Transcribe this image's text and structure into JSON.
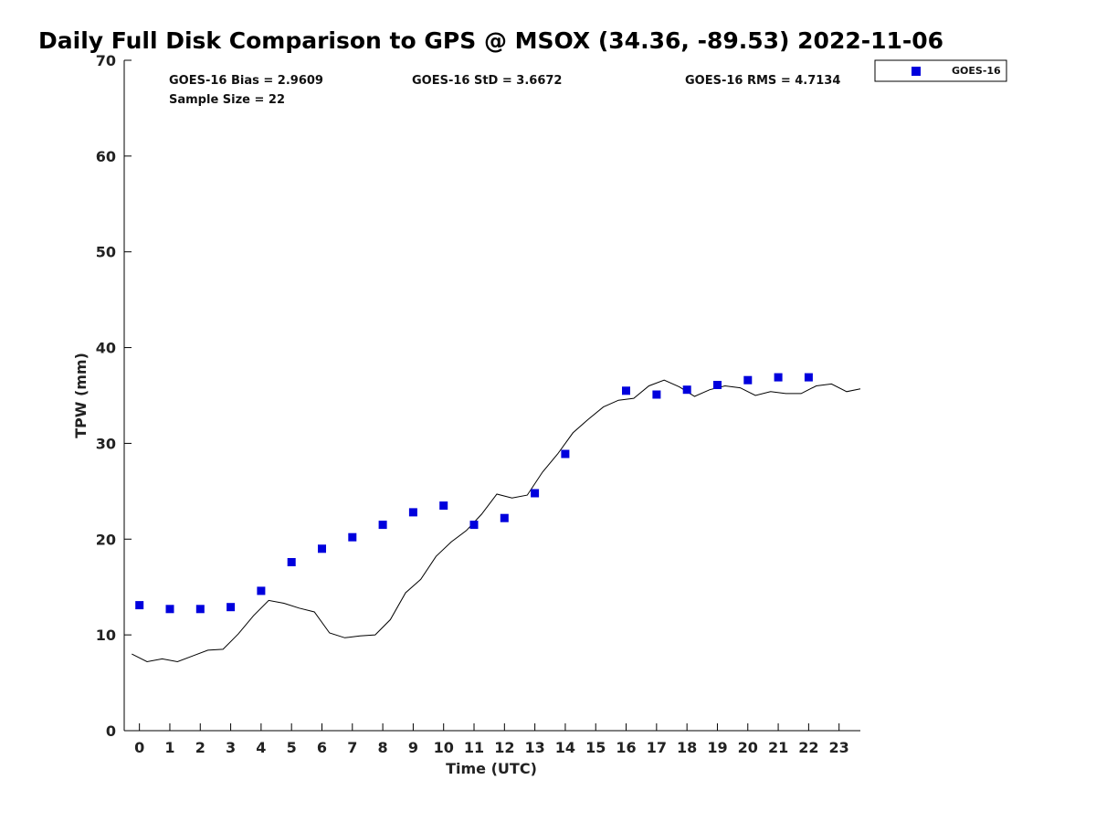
{
  "chart_data": {
    "type": "scatter",
    "title": "Daily Full Disk Comparison to GPS @ MSOX (34.36, -89.53) 2022-11-06",
    "xlabel": "Time (UTC)",
    "ylabel": "TPW (mm)",
    "xlim": [
      -0.5,
      23.7
    ],
    "ylim": [
      0,
      70
    ],
    "x_ticks": [
      0,
      1,
      2,
      3,
      4,
      5,
      6,
      7,
      8,
      9,
      10,
      11,
      12,
      13,
      14,
      15,
      16,
      17,
      18,
      19,
      20,
      21,
      22,
      23
    ],
    "y_ticks": [
      0,
      10,
      20,
      30,
      40,
      50,
      60,
      70
    ],
    "grid": false,
    "legend_position": "top-right",
    "stats": {
      "bias": "GOES-16 Bias = 2.9609",
      "std": "GOES-16 StD = 3.6672",
      "rms": "GOES-16 RMS = 4.7134",
      "sample": "Sample Size = 22"
    },
    "series": [
      {
        "name": "GOES-16",
        "kind": "scatter",
        "color": "#0000dd",
        "marker": "square",
        "x": [
          0,
          1,
          2,
          3,
          4,
          5,
          6,
          7,
          8,
          9,
          10,
          11,
          12,
          13,
          14,
          16,
          17,
          18,
          19,
          20,
          21,
          22
        ],
        "y": [
          13.1,
          12.7,
          12.7,
          12.9,
          14.6,
          17.6,
          19.0,
          20.2,
          21.5,
          22.8,
          23.5,
          21.5,
          22.2,
          24.8,
          28.9,
          35.5,
          35.1,
          35.6,
          36.1,
          36.6,
          36.9,
          36.9
        ]
      },
      {
        "kind": "line",
        "color": "#000000",
        "x": [
          -0.25,
          0.25,
          0.75,
          1.25,
          1.75,
          2.25,
          2.75,
          3.25,
          3.75,
          4.25,
          4.75,
          5.25,
          5.75,
          6.25,
          6.75,
          7.25,
          7.75,
          8.25,
          8.75,
          9.25,
          9.75,
          10.25,
          10.75,
          11.25,
          11.75,
          12.25,
          12.75,
          13.25,
          13.75,
          14.25,
          14.75,
          15.25,
          15.75,
          16.25,
          16.75,
          17.25,
          17.75,
          18.25,
          18.75,
          19.25,
          19.75,
          20.25,
          20.75,
          21.25,
          21.75,
          22.25,
          22.75,
          23.25,
          23.7
        ],
        "y": [
          8.0,
          7.2,
          7.5,
          7.2,
          7.8,
          8.4,
          8.5,
          10.1,
          12.0,
          13.6,
          13.3,
          12.8,
          12.4,
          10.2,
          9.7,
          9.9,
          10.0,
          11.6,
          14.4,
          15.8,
          18.2,
          19.7,
          20.9,
          22.6,
          24.7,
          24.3,
          24.6,
          27.0,
          28.9,
          31.1,
          32.5,
          33.8,
          34.5,
          34.7,
          36.0,
          36.6,
          35.9,
          34.9,
          35.6,
          36.0,
          35.8,
          35.0,
          35.4,
          35.2,
          35.2,
          36.0,
          36.2,
          35.4,
          35.7
        ]
      }
    ]
  }
}
